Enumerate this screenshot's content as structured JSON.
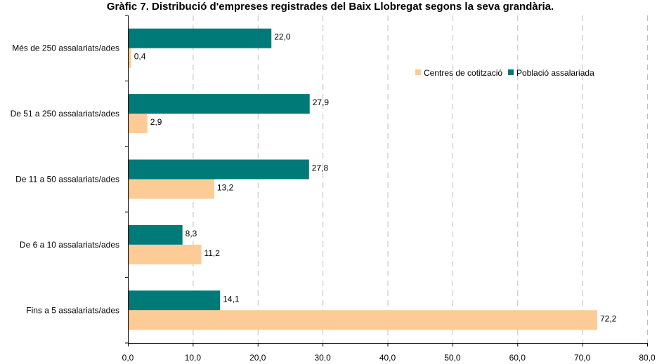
{
  "chart_data": {
    "type": "bar",
    "orientation": "horizontal",
    "title": "Gràfic 7. Distribució d'empreses registrades del Baix Llobregat segons la seva grandària.",
    "categories": [
      "Més de 250 assalariats/ades",
      "De 51 a 250 assalariats/ades",
      "De 11 a 50 assalariats/ades",
      "De 6 a 10 assalariats/ades",
      "Fins a 5 assalariats/ades"
    ],
    "series": [
      {
        "name": "Població assalariada",
        "color": "#007a78",
        "values": [
          22.0,
          27.9,
          27.8,
          8.3,
          14.1
        ],
        "labels": [
          "22,0",
          "27,9",
          "27,8",
          "8,3",
          "14,1"
        ]
      },
      {
        "name": "Centres de cotització",
        "color": "#fdcb95",
        "values": [
          0.4,
          2.9,
          13.2,
          11.2,
          72.2
        ],
        "labels": [
          "0,4",
          "2,9",
          "13,2",
          "11,2",
          "72,2"
        ]
      }
    ],
    "xlim": [
      0,
      80
    ],
    "xticks": [
      0,
      10,
      20,
      30,
      40,
      50,
      60,
      70,
      80
    ],
    "xtick_labels": [
      "0,0",
      "10,0",
      "20,0",
      "30,0",
      "40,0",
      "50,0",
      "60,0",
      "70,0",
      "80,0"
    ],
    "grid": "vertical dashed",
    "legend": {
      "position": "top-right",
      "entries": [
        "Centres de cotització",
        "Població assalariada"
      ]
    }
  }
}
